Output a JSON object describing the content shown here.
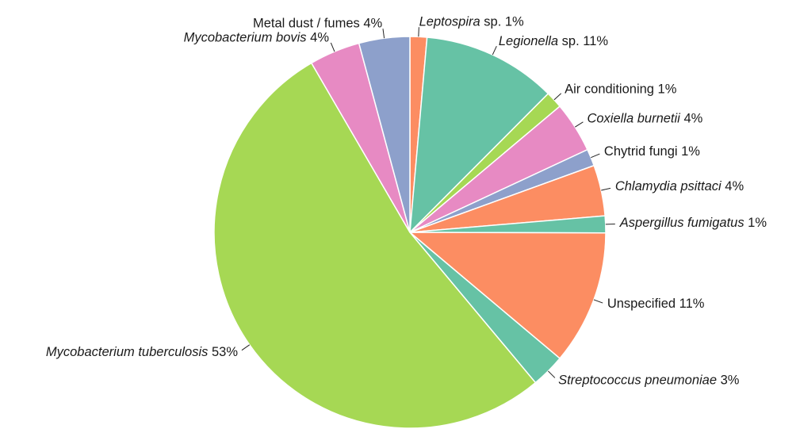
{
  "chart_data": {
    "type": "pie",
    "start_angle_deg": 90,
    "direction": "clockwise",
    "slices": [
      {
        "name": "Leptospira",
        "suffix": " sp.",
        "pct_label": "1%",
        "value": 1.4,
        "italic": true,
        "color": "#fc8d62"
      },
      {
        "name": "Legionella",
        "suffix": " sp.",
        "pct_label": "11%",
        "value": 11.1,
        "italic": true,
        "color": "#66c2a5"
      },
      {
        "name": "Air conditioning",
        "suffix": "",
        "pct_label": "1%",
        "value": 1.4,
        "italic": false,
        "color": "#a6d854"
      },
      {
        "name": "Coxiella burnetii",
        "suffix": "",
        "pct_label": "4%",
        "value": 4.2,
        "italic": true,
        "color": "#e78ac3"
      },
      {
        "name": "Chytrid fungi",
        "suffix": "",
        "pct_label": "1%",
        "value": 1.4,
        "italic": false,
        "color": "#8da0cb"
      },
      {
        "name": "Chlamydia psittaci",
        "suffix": "",
        "pct_label": "4%",
        "value": 4.2,
        "italic": true,
        "color": "#fc8d62"
      },
      {
        "name": "Aspergillus fumigatus",
        "suffix": "",
        "pct_label": "1%",
        "value": 1.4,
        "italic": true,
        "color": "#66c2a5"
      },
      {
        "name": "Unspecified",
        "suffix": "",
        "pct_label": "11%",
        "value": 11.1,
        "italic": false,
        "color": "#fc8d62"
      },
      {
        "name": "Streptococcus pneumoniae",
        "suffix": "",
        "pct_label": "3%",
        "value": 2.8,
        "italic": true,
        "color": "#66c2a5"
      },
      {
        "name": "Mycobacterium tuberculosis",
        "suffix": "",
        "pct_label": "53%",
        "value": 52.8,
        "italic": true,
        "color": "#a6d854"
      },
      {
        "name": "Mycobacterium bovis",
        "suffix": "",
        "pct_label": "4%",
        "value": 4.2,
        "italic": true,
        "color": "#e78ac3"
      },
      {
        "name": "Metal dust / fumes",
        "suffix": "",
        "pct_label": "4%",
        "value": 4.2,
        "italic": false,
        "color": "#8da0cb"
      }
    ]
  }
}
